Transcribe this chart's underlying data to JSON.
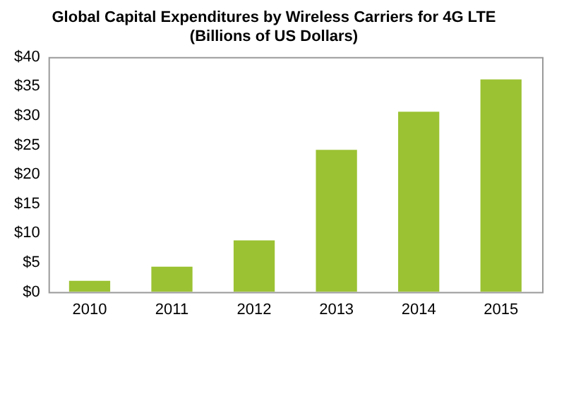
{
  "chart_data": {
    "type": "bar",
    "title": "Global Capital Expenditures by Wireless Carriers for 4G LTE\n(Billions of US Dollars)",
    "categories": [
      "2010",
      "2011",
      "2012",
      "2013",
      "2014",
      "2015"
    ],
    "values": [
      1.9,
      4.3,
      8.8,
      24.2,
      30.7,
      36.2
    ],
    "color": "#9bc232",
    "ylim": [
      0,
      40
    ],
    "yticks": [
      {
        "value": 0,
        "label": "$0"
      },
      {
        "value": 5,
        "label": "$5"
      },
      {
        "value": 10,
        "label": "$10"
      },
      {
        "value": 15,
        "label": "$15"
      },
      {
        "value": 20,
        "label": "$20"
      },
      {
        "value": 25,
        "label": "$25"
      },
      {
        "value": 30,
        "label": "$30"
      },
      {
        "value": 35,
        "label": "$35"
      },
      {
        "value": 40,
        "label": "$40"
      }
    ],
    "grid": false,
    "legend": false
  }
}
